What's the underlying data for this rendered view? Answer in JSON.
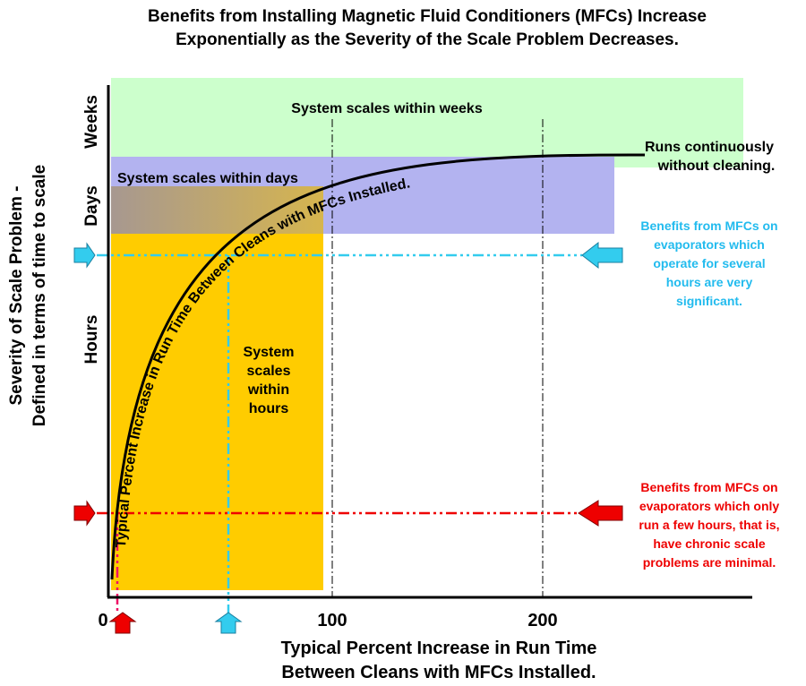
{
  "chart_data": {
    "type": "line",
    "title_line1": "Benefits from Installing Magnetic Fluid Conditioners (MFCs) Increase",
    "title_line2": "Exponentially as the Severity of the Scale Problem Decreases.",
    "xlabel_line1": "Typical Percent Increase in Run Time",
    "xlabel_line2": "Between Cleans with MFCs Installed.",
    "ylabel_line1": "Severity of Scale Problem -",
    "ylabel_line2": "Defined in terms of time to scale",
    "x_ticks": [
      "0",
      "100",
      "200"
    ],
    "y_categories": [
      "Hours",
      "Days",
      "Weeks"
    ],
    "regions": {
      "weeks": "System scales within weeks",
      "days": "System scales within days",
      "hours": [
        "System",
        "scales",
        "within",
        "hours"
      ]
    },
    "curve_label": "Typical Percent Increase in Run Time Between Cleans with MFCs Installed.",
    "annotations": {
      "continuous": [
        "Runs continuously",
        "without cleaning."
      ],
      "several_hours": [
        "Benefits from MFCs on",
        "evaporators which",
        "operate for several",
        "hours are very",
        "significant."
      ],
      "few_hours": [
        "Benefits from MFCs on",
        "evaporators which only",
        "run a few hours, that is,",
        "have chronic scale",
        "problems are minimal."
      ]
    },
    "markers": {
      "few_hours_x": 2,
      "several_hours_x": 50
    },
    "colors": {
      "weeks_region": "#ccffcc",
      "days_region": "#b3b3f0",
      "hours_region": "#ffcc00",
      "several_hours": "#33ccee",
      "few_hours": "#ee0000",
      "curve": "#000000"
    }
  }
}
